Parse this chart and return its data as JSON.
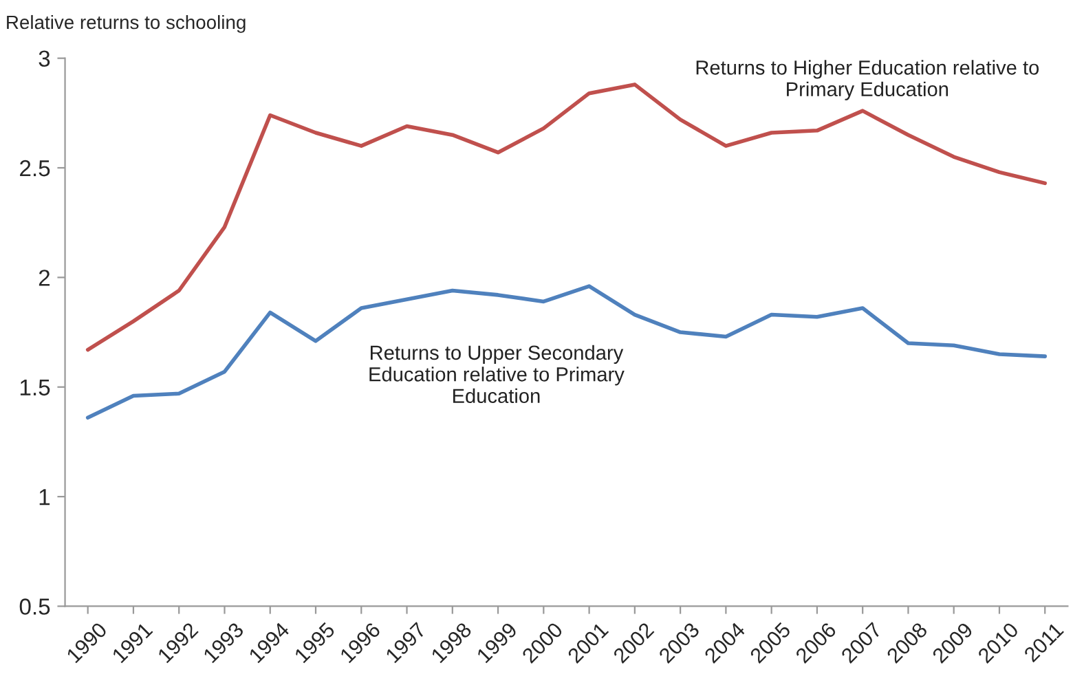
{
  "chart_data": {
    "type": "line",
    "ylabel": "Relative returns to schooling",
    "categories": [
      "1990",
      "1991",
      "1992",
      "1993",
      "1994",
      "1995",
      "1996",
      "1997",
      "1998",
      "1999",
      "2000",
      "2001",
      "2002",
      "2003",
      "2004",
      "2005",
      "2006",
      "2007",
      "2008",
      "2009",
      "2010",
      "2011"
    ],
    "series": [
      {
        "name": "Returns to Higher Education relative to Primary Education",
        "color": "#c0504d",
        "values": [
          1.67,
          1.8,
          1.94,
          2.23,
          2.74,
          2.66,
          2.6,
          2.69,
          2.65,
          2.57,
          2.68,
          2.84,
          2.88,
          2.72,
          2.6,
          2.66,
          2.67,
          2.76,
          2.65,
          2.55,
          2.48,
          2.43
        ]
      },
      {
        "name": "Returns to Upper Secondary Education relative to Primary Education",
        "color": "#4f81bd",
        "values": [
          1.36,
          1.46,
          1.47,
          1.57,
          1.84,
          1.71,
          1.86,
          1.9,
          1.94,
          1.92,
          1.89,
          1.96,
          1.83,
          1.75,
          1.73,
          1.83,
          1.82,
          1.86,
          1.7,
          1.69,
          1.65,
          1.64
        ]
      }
    ],
    "ylim": [
      0.5,
      3
    ],
    "yticks": [
      0.5,
      1,
      1.5,
      2,
      2.5,
      3
    ],
    "grid": false,
    "legend": false,
    "marker": "none",
    "line_style": "solid"
  }
}
